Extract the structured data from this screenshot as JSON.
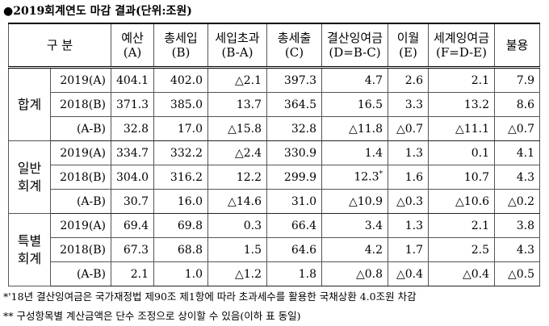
{
  "title": "●2019회계연도 마감 결과(단위:조원)",
  "table": {
    "corner": "구  분",
    "headers": [
      "예산\n(A)",
      "총세입\n(B)",
      "세입초과\n(B-A)",
      "총세출\n(C)",
      "결산잉여금\n(D=B-C)",
      "이월\n(E)",
      "세계잉여금\n(F=D-E)",
      "불용"
    ],
    "groups": [
      {
        "label": "합계",
        "rows": [
          {
            "label": "2019(A)",
            "cells": [
              "404.1",
              "402.0",
              "△2.1",
              "397.3",
              "4.7",
              "2.6",
              "2.1",
              "7.9"
            ]
          },
          {
            "label": "2018(B)",
            "cells": [
              "371.3",
              "385.0",
              "13.7",
              "364.5",
              "16.5",
              "3.3",
              "13.2",
              "8.6"
            ]
          },
          {
            "label": "(A-B)",
            "cells": [
              "32.8",
              "17.0",
              "△15.8",
              "32.8",
              "△11.8",
              "△0.7",
              "△11.1",
              "△0.7"
            ]
          }
        ]
      },
      {
        "label": "일반\n회계",
        "rows": [
          {
            "label": "2019(A)",
            "cells": [
              "334.7",
              "332.2",
              "△2.4",
              "330.9",
              "1.4",
              "1.3",
              "0.1",
              "4.1"
            ]
          },
          {
            "label": "2018(B)",
            "cells": [
              "304.0",
              "316.2",
              "12.2",
              "299.9",
              "12.3",
              "1.6",
              "10.7",
              "4.3"
            ],
            "note_mark": "*"
          },
          {
            "label": "(A-B)",
            "cells": [
              "30.7",
              "16.0",
              "△14.6",
              "31.0",
              "△10.9",
              "△0.3",
              "△10.6",
              "△0.2"
            ]
          }
        ]
      },
      {
        "label": "특별\n회계",
        "rows": [
          {
            "label": "2019(A)",
            "cells": [
              "69.4",
              "69.8",
              "0.3",
              "66.4",
              "3.4",
              "1.3",
              "2.1",
              "3.8"
            ]
          },
          {
            "label": "2018(B)",
            "cells": [
              "67.3",
              "68.8",
              "1.5",
              "64.6",
              "4.2",
              "1.7",
              "2.5",
              "4.3"
            ]
          },
          {
            "label": "(A-B)",
            "cells": [
              "2.1",
              "1.0",
              "△1.2",
              "1.8",
              "△0.8",
              "△0.4",
              "△0.4",
              "△0.5"
            ]
          }
        ]
      }
    ]
  },
  "notes": [
    "*'18년 결산잉여금은 국가재정법 제90조 제1항에 따라 초과세수를 활용한 국채상환 4.0조원 차감",
    "** 구성항목별 계산금액은 단수 조정으로 상이할 수 있음(이하 표 동일)"
  ]
}
